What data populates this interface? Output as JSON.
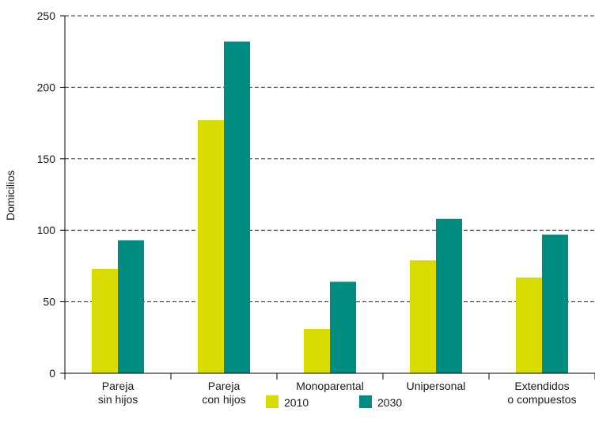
{
  "chart_data": {
    "type": "bar",
    "title": "",
    "xlabel": "",
    "ylabel": "Domicilios",
    "ylim": [
      0,
      250
    ],
    "yticks": [
      0,
      50,
      100,
      150,
      200,
      250
    ],
    "grid": true,
    "legend_position": "bottom",
    "categories": [
      [
        "Pareja",
        "sin hijos"
      ],
      [
        "Pareja",
        "con hijos"
      ],
      [
        "Monoparental"
      ],
      [
        "Unipersonal"
      ],
      [
        "Extendidos",
        "o compuestos"
      ]
    ],
    "series": [
      {
        "name": "2010",
        "color": "#d9dc00",
        "values": [
          73,
          177,
          31,
          79,
          67
        ]
      },
      {
        "name": "2030",
        "color": "#008c80",
        "values": [
          93,
          232,
          64,
          108,
          97
        ]
      }
    ]
  }
}
